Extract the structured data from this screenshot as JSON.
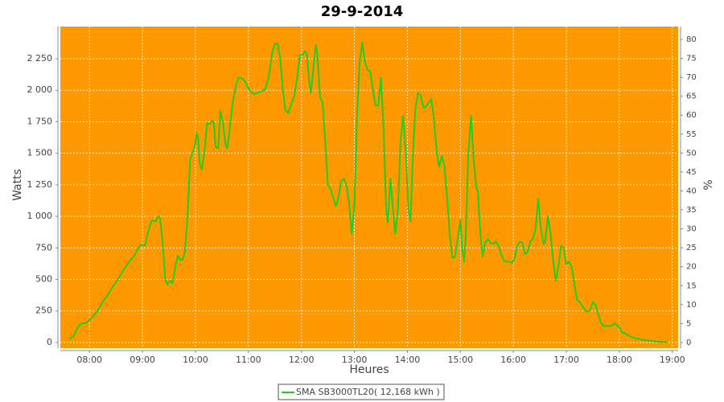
{
  "chart_data": {
    "type": "line",
    "title": "29-9-2014",
    "x_label": "Heures",
    "y_label": "Watts",
    "y2_label": "%",
    "xlim": [
      7.45,
      19.11
    ],
    "xticks": [
      {
        "value": 8,
        "label": "08:00"
      },
      {
        "value": 9,
        "label": "09:00"
      },
      {
        "value": 10,
        "label": "10:00"
      },
      {
        "value": 11,
        "label": "11:00"
      },
      {
        "value": 12,
        "label": "12:00"
      },
      {
        "value": 13,
        "label": "13:00"
      },
      {
        "value": 14,
        "label": "14:00"
      },
      {
        "value": 15,
        "label": "15:00"
      },
      {
        "value": 16,
        "label": "16:00"
      },
      {
        "value": 17,
        "label": "17:00"
      },
      {
        "value": 18,
        "label": "18:00"
      },
      {
        "value": 19,
        "label": "19:00"
      }
    ],
    "ylim": [
      -45,
      2505
    ],
    "yticks": [
      0,
      250,
      500,
      750,
      {
        "value": 1000,
        "label": "1 000"
      },
      {
        "value": 1250,
        "label": "1 250"
      },
      {
        "value": 1500,
        "label": "1 500"
      },
      {
        "value": 1750,
        "label": "1 750"
      },
      {
        "value": 2000,
        "label": "2 000"
      },
      {
        "value": 2250,
        "label": "2 250"
      }
    ],
    "y2lim": [
      -1.5,
      83.4
    ],
    "y2ticks": [
      0,
      5,
      10,
      15,
      20,
      25,
      30,
      35,
      40,
      45,
      50,
      55,
      60,
      65,
      70,
      75,
      80
    ],
    "grid": true,
    "background": "#ff9900",
    "legend": "bottom",
    "x": [
      7.62,
      7.7,
      7.78,
      7.85,
      7.95,
      8.05,
      8.15,
      8.25,
      8.35,
      8.45,
      8.55,
      8.65,
      8.75,
      8.85,
      8.95,
      9.05,
      9.12,
      9.18,
      9.25,
      9.3,
      9.33,
      9.38,
      9.43,
      9.47,
      9.52,
      9.57,
      9.62,
      9.67,
      9.72,
      9.76,
      9.8,
      9.85,
      9.9,
      9.95,
      10.0,
      10.02,
      10.05,
      10.08,
      10.12,
      10.18,
      10.22,
      10.27,
      10.32,
      10.35,
      10.38,
      10.43,
      10.47,
      10.52,
      10.57,
      10.6,
      10.65,
      10.7,
      10.77,
      10.82,
      10.9,
      10.95,
      11.02,
      11.1,
      11.18,
      11.25,
      11.32,
      11.38,
      11.45,
      11.5,
      11.55,
      11.6,
      11.65,
      11.7,
      11.75,
      11.82,
      11.87,
      11.92,
      11.97,
      12.02,
      12.07,
      12.1,
      12.15,
      12.18,
      12.22,
      12.27,
      12.3,
      12.35,
      12.4,
      12.45,
      12.5,
      12.55,
      12.6,
      12.65,
      12.7,
      12.75,
      12.8,
      12.85,
      12.9,
      12.95,
      13.0,
      13.05,
      13.1,
      13.15,
      13.2,
      13.25,
      13.3,
      13.35,
      13.4,
      13.45,
      13.5,
      13.55,
      13.6,
      13.63,
      13.68,
      13.72,
      13.77,
      13.82,
      13.87,
      13.92,
      13.97,
      14.02,
      14.06,
      14.1,
      14.15,
      14.2,
      14.25,
      14.3,
      14.35,
      14.4,
      14.45,
      14.5,
      14.55,
      14.6,
      14.65,
      14.7,
      14.75,
      14.8,
      14.85,
      14.9,
      14.95,
      15.0,
      15.03,
      15.07,
      15.1,
      15.15,
      15.2,
      15.25,
      15.3,
      15.33,
      15.37,
      15.42,
      15.47,
      15.52,
      15.57,
      15.62,
      15.67,
      15.72,
      15.77,
      15.82,
      15.87,
      15.92,
      15.97,
      16.02,
      16.07,
      16.12,
      16.17,
      16.22,
      16.27,
      16.32,
      16.37,
      16.42,
      16.47,
      16.52,
      16.57,
      16.6,
      16.65,
      16.7,
      16.75,
      16.8,
      16.85,
      16.9,
      16.95,
      17.0,
      17.05,
      17.1,
      17.15,
      17.2,
      17.25,
      17.3,
      17.35,
      17.4,
      17.45,
      17.5,
      17.55,
      17.6,
      17.65,
      17.7,
      17.75,
      17.8,
      17.85,
      17.9,
      17.95,
      18.0,
      18.05,
      18.1,
      18.15,
      18.25,
      18.35,
      18.45,
      18.55,
      18.65,
      18.75,
      18.85,
      18.9
    ],
    "series": [
      {
        "name": "SMA SB3000TL20( 12,168 kWh )",
        "color": "#22cc22",
        "values": [
          25,
          50,
          120,
          150,
          155,
          200,
          250,
          320,
          380,
          450,
          510,
          580,
          640,
          690,
          770,
          770,
          900,
          970,
          960,
          1000,
          990,
          800,
          500,
          460,
          490,
          470,
          600,
          690,
          650,
          660,
          720,
          1000,
          1450,
          1510,
          1580,
          1660,
          1630,
          1420,
          1370,
          1550,
          1740,
          1730,
          1760,
          1740,
          1550,
          1540,
          1840,
          1740,
          1560,
          1540,
          1700,
          1900,
          2050,
          2100,
          2090,
          2060,
          2000,
          1970,
          1980,
          1990,
          2010,
          2100,
          2300,
          2370,
          2370,
          2260,
          2000,
          1840,
          1820,
          1900,
          1960,
          2100,
          2280,
          2280,
          2310,
          2290,
          2050,
          1980,
          2150,
          2360,
          2290,
          1950,
          1900,
          1600,
          1250,
          1220,
          1150,
          1080,
          1150,
          1280,
          1300,
          1250,
          1100,
          860,
          1100,
          1800,
          2220,
          2380,
          2220,
          2160,
          2150,
          2000,
          1880,
          1880,
          2100,
          1700,
          1050,
          950,
          1300,
          1100,
          860,
          1050,
          1600,
          1800,
          1500,
          1050,
          960,
          1450,
          1850,
          1980,
          1960,
          1860,
          1870,
          1900,
          1930,
          1780,
          1520,
          1390,
          1480,
          1400,
          1150,
          850,
          670,
          680,
          830,
          970,
          760,
          640,
          830,
          1500,
          1800,
          1450,
          1230,
          1200,
          900,
          680,
          790,
          820,
          790,
          780,
          800,
          770,
          700,
          650,
          640,
          640,
          630,
          660,
          760,
          800,
          790,
          700,
          720,
          800,
          820,
          900,
          1140,
          900,
          780,
          800,
          1000,
          870,
          650,
          490,
          600,
          770,
          750,
          620,
          640,
          600,
          470,
          340,
          320,
          290,
          260,
          240,
          260,
          320,
          300,
          230,
          160,
          130,
          130,
          130,
          130,
          150,
          140,
          120,
          80,
          75,
          60,
          40,
          30,
          20,
          15,
          10,
          5,
          5,
          0
        ]
      }
    ]
  }
}
